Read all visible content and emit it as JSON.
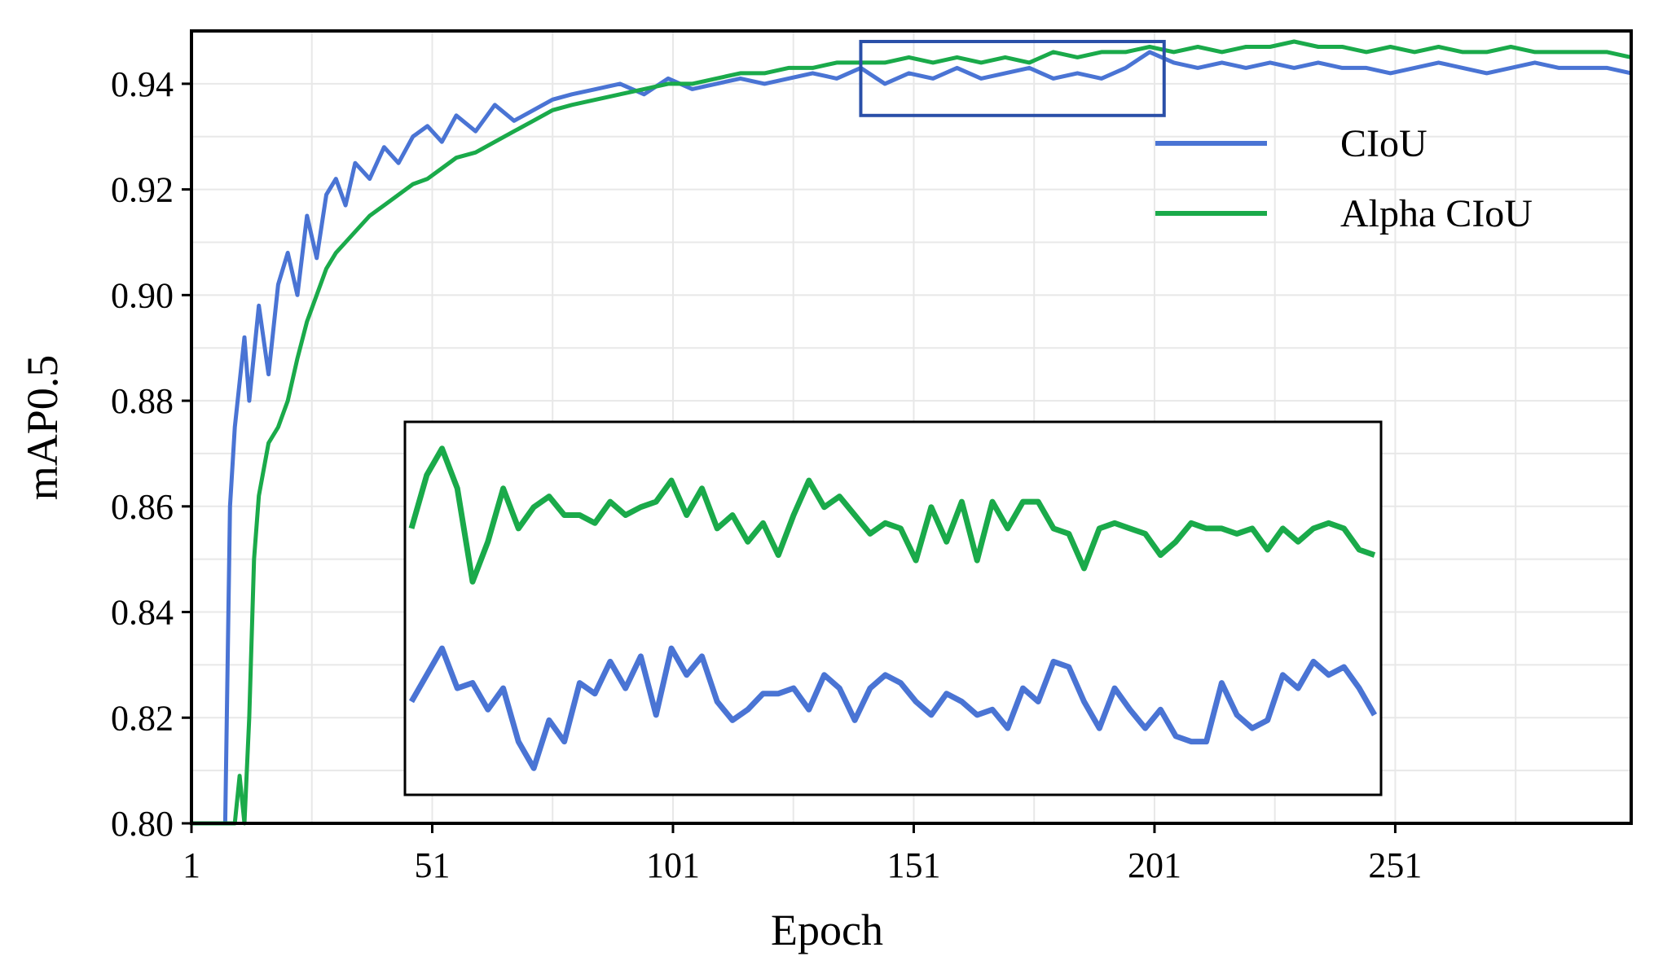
{
  "chart_data": {
    "type": "line",
    "title": "",
    "xlabel": "Epoch",
    "ylabel": "mAP0.5",
    "xlim": [
      1,
      300
    ],
    "ylim": [
      0.8,
      0.95
    ],
    "xticks": [
      1,
      51,
      101,
      151,
      201,
      251
    ],
    "yticks": [
      0.8,
      0.82,
      0.84,
      0.86,
      0.88,
      0.9,
      0.92,
      0.94
    ],
    "grid": true,
    "legend_position": "right, inside plot",
    "series": [
      {
        "name": "CIoU",
        "color": "#4a74d4",
        "x": [
          1,
          8,
          9,
          10,
          12,
          13,
          15,
          17,
          19,
          21,
          23,
          25,
          27,
          29,
          31,
          33,
          35,
          38,
          41,
          44,
          47,
          50,
          53,
          56,
          60,
          64,
          68,
          72,
          76,
          80,
          85,
          90,
          95,
          100,
          105,
          110,
          115,
          120,
          125,
          130,
          135,
          140,
          145,
          150,
          155,
          160,
          165,
          170,
          175,
          180,
          185,
          190,
          195,
          200,
          205,
          210,
          215,
          220,
          225,
          230,
          235,
          240,
          245,
          250,
          255,
          260,
          265,
          270,
          275,
          280,
          285,
          290,
          295,
          300
        ],
        "y": [
          0.8,
          0.8,
          0.86,
          0.875,
          0.892,
          0.88,
          0.898,
          0.885,
          0.902,
          0.908,
          0.9,
          0.915,
          0.907,
          0.919,
          0.922,
          0.917,
          0.925,
          0.922,
          0.928,
          0.925,
          0.93,
          0.932,
          0.929,
          0.934,
          0.931,
          0.936,
          0.933,
          0.935,
          0.937,
          0.938,
          0.939,
          0.94,
          0.938,
          0.941,
          0.939,
          0.94,
          0.941,
          0.94,
          0.941,
          0.942,
          0.941,
          0.943,
          0.94,
          0.942,
          0.941,
          0.943,
          0.941,
          0.942,
          0.943,
          0.941,
          0.942,
          0.941,
          0.943,
          0.946,
          0.944,
          0.943,
          0.944,
          0.943,
          0.944,
          0.943,
          0.944,
          0.943,
          0.943,
          0.942,
          0.943,
          0.944,
          0.943,
          0.942,
          0.943,
          0.944,
          0.943,
          0.943,
          0.943,
          0.942
        ]
      },
      {
        "name": "Alpha CIoU",
        "color": "#1aaa4a",
        "x": [
          1,
          10,
          11,
          12,
          13,
          14,
          15,
          17,
          19,
          21,
          23,
          25,
          27,
          29,
          31,
          33,
          35,
          38,
          41,
          44,
          47,
          50,
          53,
          56,
          60,
          64,
          68,
          72,
          76,
          80,
          85,
          90,
          95,
          100,
          105,
          110,
          115,
          120,
          125,
          130,
          135,
          140,
          145,
          150,
          155,
          160,
          165,
          170,
          175,
          180,
          185,
          190,
          195,
          200,
          205,
          210,
          215,
          220,
          225,
          230,
          235,
          240,
          245,
          250,
          255,
          260,
          265,
          270,
          275,
          280,
          285,
          290,
          295,
          300
        ],
        "y": [
          0.8,
          0.8,
          0.809,
          0.8,
          0.82,
          0.85,
          0.862,
          0.872,
          0.875,
          0.88,
          0.888,
          0.895,
          0.9,
          0.905,
          0.908,
          0.91,
          0.912,
          0.915,
          0.917,
          0.919,
          0.921,
          0.922,
          0.924,
          0.926,
          0.927,
          0.929,
          0.931,
          0.933,
          0.935,
          0.936,
          0.937,
          0.938,
          0.939,
          0.94,
          0.94,
          0.941,
          0.942,
          0.942,
          0.943,
          0.943,
          0.944,
          0.944,
          0.944,
          0.945,
          0.944,
          0.945,
          0.944,
          0.945,
          0.944,
          0.946,
          0.945,
          0.946,
          0.946,
          0.947,
          0.946,
          0.947,
          0.946,
          0.947,
          0.947,
          0.948,
          0.947,
          0.947,
          0.946,
          0.947,
          0.946,
          0.947,
          0.946,
          0.946,
          0.947,
          0.946,
          0.946,
          0.946,
          0.946,
          0.945
        ]
      }
    ],
    "inset": {
      "note": "zoomed view of epochs 140-203",
      "x_range": [
        140,
        203
      ],
      "ciou_y": [
        0.9375,
        0.9385,
        0.9395,
        0.938,
        0.9382,
        0.9372,
        0.938,
        0.936,
        0.935,
        0.9368,
        0.936,
        0.9382,
        0.9378,
        0.939,
        0.938,
        0.9392,
        0.937,
        0.9395,
        0.9385,
        0.9392,
        0.9375,
        0.9368,
        0.9372,
        0.9378,
        0.9378,
        0.938,
        0.9372,
        0.9385,
        0.938,
        0.9368,
        0.938,
        0.9385,
        0.9382,
        0.9375,
        0.937,
        0.9378,
        0.9375,
        0.937,
        0.9372,
        0.9365,
        0.938,
        0.9375,
        0.939,
        0.9388,
        0.9375,
        0.9365,
        0.938,
        0.9372,
        0.9365,
        0.9372,
        0.9362,
        0.936,
        0.936,
        0.9382,
        0.937,
        0.9365,
        0.9368,
        0.9385,
        0.938,
        0.939,
        0.9385,
        0.9388,
        0.938,
        0.937
      ],
      "alpha_y": [
        0.944,
        0.946,
        0.947,
        0.9455,
        0.942,
        0.9435,
        0.9455,
        0.944,
        0.9448,
        0.9452,
        0.9445,
        0.9445,
        0.9442,
        0.945,
        0.9445,
        0.9448,
        0.945,
        0.9458,
        0.9445,
        0.9455,
        0.944,
        0.9445,
        0.9435,
        0.9442,
        0.943,
        0.9445,
        0.9458,
        0.9448,
        0.9452,
        0.9445,
        0.9438,
        0.9442,
        0.944,
        0.9428,
        0.9448,
        0.9435,
        0.945,
        0.9428,
        0.945,
        0.944,
        0.945,
        0.945,
        0.944,
        0.9438,
        0.9425,
        0.944,
        0.9442,
        0.944,
        0.9438,
        0.943,
        0.9435,
        0.9442,
        0.944,
        0.944,
        0.9438,
        0.944,
        0.9432,
        0.944,
        0.9435,
        0.944,
        0.9442,
        0.944,
        0.9432,
        0.943
      ]
    }
  }
}
